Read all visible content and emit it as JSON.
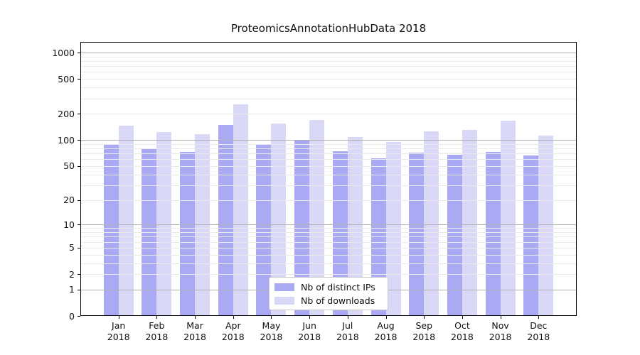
{
  "title": "ProteomicsAnnotationHubData 2018",
  "chart_data": {
    "type": "bar",
    "title": "ProteomicsAnnotationHubData 2018",
    "scale": "log1p",
    "categories": [
      "Jan 2018",
      "Feb 2018",
      "Mar 2018",
      "Apr 2018",
      "May 2018",
      "Jun 2018",
      "Jul 2018",
      "Aug 2018",
      "Sep 2018",
      "Oct 2018",
      "Nov 2018",
      "Dec 2018"
    ],
    "series": [
      {
        "name": "Nb of distinct IPs",
        "color": "#a9a9f4",
        "values": [
          89,
          79,
          73,
          150,
          89,
          100,
          74,
          61,
          71,
          68,
          73,
          66
        ]
      },
      {
        "name": "Nb of downloads",
        "color": "#d9d9f7",
        "values": [
          145,
          123,
          116,
          257,
          155,
          171,
          109,
          94,
          126,
          130,
          166,
          112
        ]
      }
    ],
    "xlabel": "",
    "ylabel": "",
    "y_ticks": [
      0,
      1,
      2,
      5,
      10,
      20,
      50,
      100,
      200,
      500,
      1000
    ],
    "ylim": [
      0,
      1300
    ],
    "grid": {
      "major_at": [
        1,
        10,
        100,
        1000
      ],
      "minor": "2-9 multiples per decade",
      "major_color": "#b0b0b0",
      "minor_color": "#e9e9e9"
    },
    "legend_position": "bottom-center",
    "legend_entries": [
      "Nb of distinct IPs",
      "Nb of downloads"
    ]
  }
}
